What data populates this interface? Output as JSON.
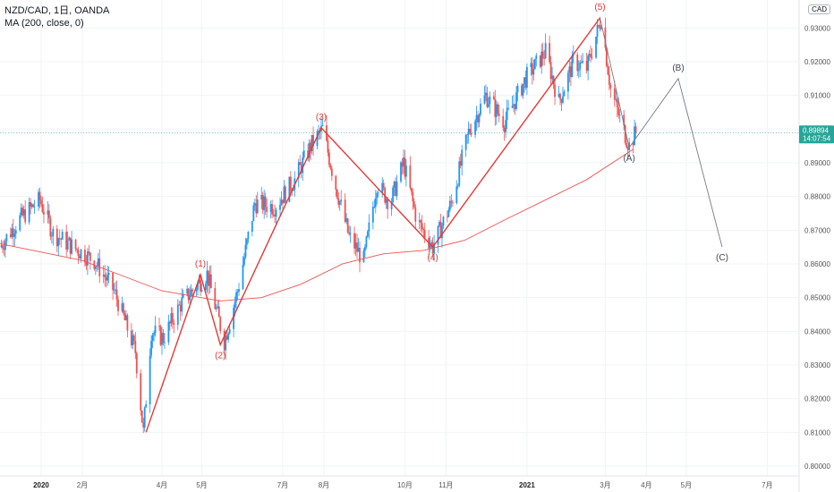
{
  "legend": {
    "symbol": "NZD/CAD, 1日, OANDA",
    "indicator": "MA (200, close, 0)"
  },
  "axis_badge": "CAD",
  "price_tag": {
    "price": "0.89894",
    "countdown": "14:07:54",
    "color": "#26a69a"
  },
  "colors": {
    "up": "#2196f3",
    "down": "#ef5350",
    "ma": "#ef5350",
    "wave_main": "#e53935",
    "wave_corr": "#787b86",
    "grid": "#f0f3fa",
    "axis": "#e0e3eb"
  },
  "chart_data": {
    "type": "line",
    "title": "NZD/CAD, 1日, OANDA",
    "xlabel": "",
    "ylabel": "",
    "ylim": [
      0.8,
      0.945
    ],
    "y_ticks": [
      "0.80000",
      "0.81000",
      "0.82000",
      "0.83000",
      "0.84000",
      "0.85000",
      "0.86000",
      "0.87000",
      "0.88000",
      "0.89000",
      "0.90000",
      "0.91000",
      "0.92000",
      "0.93000"
    ],
    "x_ticks": [
      {
        "label": "2020",
        "date": "2020-01-01",
        "bold": true
      },
      {
        "label": "2月",
        "date": "2020-02-01"
      },
      {
        "label": "4月",
        "date": "2020-04-01"
      },
      {
        "label": "5月",
        "date": "2020-05-01"
      },
      {
        "label": "7月",
        "date": "2020-07-01"
      },
      {
        "label": "8月",
        "date": "2020-08-01"
      },
      {
        "label": "10月",
        "date": "2020-10-01"
      },
      {
        "label": "11月",
        "date": "2020-11-01"
      },
      {
        "label": "2021",
        "date": "2021-01-01",
        "bold": true
      },
      {
        "label": "3月",
        "date": "2021-03-01"
      },
      {
        "label": "4月",
        "date": "2021-04-01"
      },
      {
        "label": "5月",
        "date": "2021-05-01"
      },
      {
        "label": "7月",
        "date": "2021-07-01"
      }
    ],
    "series": [
      {
        "name": "NZD/CAD",
        "points": [
          {
            "x": "2019-12-01",
            "y": 0.865
          },
          {
            "x": "2019-12-15",
            "y": 0.873
          },
          {
            "x": "2019-12-31",
            "y": 0.879
          },
          {
            "x": "2020-01-10",
            "y": 0.869
          },
          {
            "x": "2020-01-25",
            "y": 0.865
          },
          {
            "x": "2020-02-10",
            "y": 0.861
          },
          {
            "x": "2020-02-25",
            "y": 0.852
          },
          {
            "x": "2020-03-05",
            "y": 0.842
          },
          {
            "x": "2020-03-12",
            "y": 0.834
          },
          {
            "x": "2020-03-18",
            "y": 0.81
          },
          {
            "x": "2020-03-24",
            "y": 0.84
          },
          {
            "x": "2020-04-02",
            "y": 0.838
          },
          {
            "x": "2020-04-15",
            "y": 0.848
          },
          {
            "x": "2020-04-28",
            "y": 0.854
          },
          {
            "x": "2020-05-05",
            "y": 0.857
          },
          {
            "x": "2020-05-18",
            "y": 0.837
          },
          {
            "x": "2020-05-28",
            "y": 0.852
          },
          {
            "x": "2020-06-10",
            "y": 0.878
          },
          {
            "x": "2020-06-25",
            "y": 0.877
          },
          {
            "x": "2020-07-10",
            "y": 0.885
          },
          {
            "x": "2020-07-22",
            "y": 0.895
          },
          {
            "x": "2020-07-31",
            "y": 0.9
          },
          {
            "x": "2020-08-10",
            "y": 0.883
          },
          {
            "x": "2020-08-20",
            "y": 0.868
          },
          {
            "x": "2020-08-31",
            "y": 0.861
          },
          {
            "x": "2020-09-10",
            "y": 0.884
          },
          {
            "x": "2020-09-20",
            "y": 0.878
          },
          {
            "x": "2020-09-30",
            "y": 0.89
          },
          {
            "x": "2020-10-10",
            "y": 0.873
          },
          {
            "x": "2020-10-22",
            "y": 0.865
          },
          {
            "x": "2020-11-05",
            "y": 0.878
          },
          {
            "x": "2020-11-18",
            "y": 0.899
          },
          {
            "x": "2020-12-01",
            "y": 0.91
          },
          {
            "x": "2020-12-15",
            "y": 0.902
          },
          {
            "x": "2020-12-31",
            "y": 0.915
          },
          {
            "x": "2021-01-15",
            "y": 0.923
          },
          {
            "x": "2021-01-25",
            "y": 0.908
          },
          {
            "x": "2021-02-05",
            "y": 0.92
          },
          {
            "x": "2021-02-15",
            "y": 0.918
          },
          {
            "x": "2021-02-26",
            "y": 0.933
          },
          {
            "x": "2021-03-05",
            "y": 0.912
          },
          {
            "x": "2021-03-12",
            "y": 0.903
          },
          {
            "x": "2021-03-19",
            "y": 0.895
          },
          {
            "x": "2021-03-24",
            "y": 0.899
          }
        ]
      },
      {
        "name": "MA (200, close, 0)",
        "points": [
          {
            "x": "2019-12-01",
            "y": 0.866
          },
          {
            "x": "2020-02-01",
            "y": 0.861
          },
          {
            "x": "2020-04-01",
            "y": 0.852
          },
          {
            "x": "2020-05-15",
            "y": 0.849
          },
          {
            "x": "2020-06-15",
            "y": 0.85
          },
          {
            "x": "2020-07-15",
            "y": 0.854
          },
          {
            "x": "2020-08-15",
            "y": 0.86
          },
          {
            "x": "2020-09-15",
            "y": 0.863
          },
          {
            "x": "2020-10-15",
            "y": 0.864
          },
          {
            "x": "2020-11-15",
            "y": 0.867
          },
          {
            "x": "2020-12-15",
            "y": 0.873
          },
          {
            "x": "2021-01-15",
            "y": 0.879
          },
          {
            "x": "2021-02-15",
            "y": 0.885
          },
          {
            "x": "2021-03-22",
            "y": 0.894
          }
        ]
      }
    ],
    "annotations": [
      {
        "label": "(1)",
        "x": "2020-04-30",
        "y": 0.8568,
        "pos": "above",
        "kind": "main"
      },
      {
        "label": "(2)",
        "x": "2020-05-15",
        "y": 0.836,
        "pos": "below",
        "kind": "main"
      },
      {
        "label": "(3)",
        "x": "2020-07-30",
        "y": 0.9004,
        "pos": "above",
        "kind": "main"
      },
      {
        "label": "(4)",
        "x": "2020-10-22",
        "y": 0.865,
        "pos": "below",
        "kind": "main"
      },
      {
        "label": "(5)",
        "x": "2021-02-25",
        "y": 0.933,
        "pos": "above",
        "kind": "main"
      },
      {
        "label": "(A)",
        "x": "2021-03-19",
        "y": 0.8945,
        "pos": "below",
        "kind": "corr"
      },
      {
        "label": "(B)",
        "x": "2021-04-25",
        "y": 0.915,
        "pos": "above",
        "kind": "corr"
      },
      {
        "label": "(C)",
        "x": "2021-05-28",
        "y": 0.865,
        "pos": "below",
        "kind": "corr"
      }
    ]
  }
}
